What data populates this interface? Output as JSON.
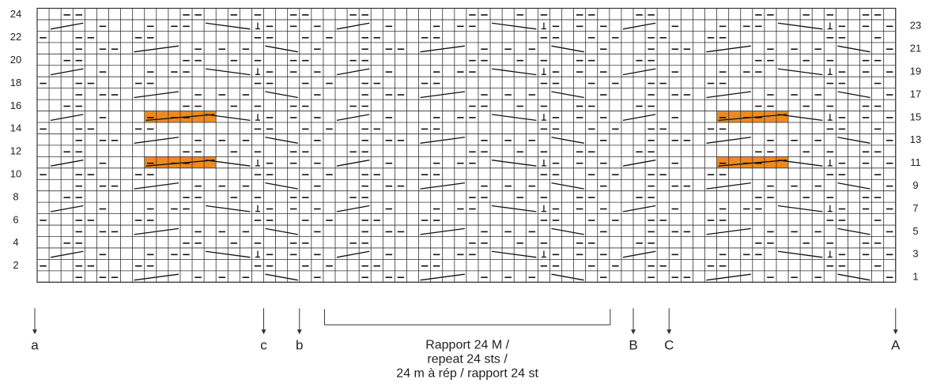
{
  "chart": {
    "columns": 72,
    "rows": 24,
    "row_numbers_left": [
      "2",
      "4",
      "6",
      "8",
      "10",
      "12",
      "14",
      "16",
      "18",
      "20",
      "22",
      "24"
    ],
    "row_numbers_right": [
      "1",
      "3",
      "5",
      "7",
      "9",
      "11",
      "13",
      "15",
      "17",
      "19",
      "21",
      "23"
    ],
    "colors": {
      "grid": "#333333",
      "highlight": "#ee8a1e",
      "symbol": "#111111"
    },
    "highlighted_rows": [
      11,
      15
    ],
    "markers": [
      {
        "label": "a",
        "column": 0
      },
      {
        "label": "c",
        "column": 19
      },
      {
        "label": "b",
        "column": 22
      },
      {
        "label": "B",
        "column": 50
      },
      {
        "label": "C",
        "column": 53
      },
      {
        "label": "A",
        "column": 72
      }
    ],
    "repeat": {
      "start_column": 24,
      "end_column": 48,
      "lines": [
        "Rapport 24 M /",
        "repeat 24 sts /",
        "24 m à rép / rapport 24 st"
      ]
    }
  }
}
